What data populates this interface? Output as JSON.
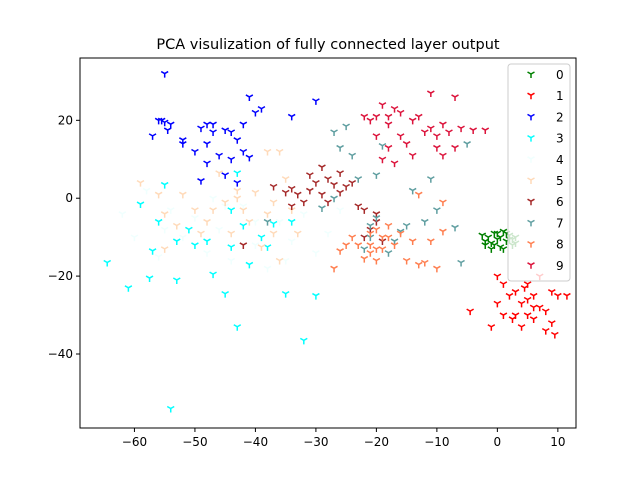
{
  "chart_data": {
    "type": "scatter",
    "title": "PCA visulization of fully connected layer output",
    "xlabel": "",
    "ylabel": "",
    "xlim": [
      -69,
      13
    ],
    "ylim": [
      -59,
      36
    ],
    "xticks": [
      -60,
      -50,
      -40,
      -30,
      -20,
      -10,
      0,
      10
    ],
    "yticks": [
      -40,
      -20,
      0,
      20
    ],
    "grid": false,
    "legend_position": "top-right",
    "marker": "tri_down",
    "series": [
      {
        "name": "0",
        "color": "#008000",
        "points": [
          [
            -2.5,
            -9.5
          ],
          [
            -2,
            -12
          ],
          [
            -1.5,
            -10
          ],
          [
            -1,
            -11.5
          ],
          [
            -0.5,
            -9
          ],
          [
            0,
            -10.5
          ],
          [
            0.5,
            -12.5
          ],
          [
            1,
            -8.5
          ],
          [
            1.5,
            -11
          ],
          [
            2,
            -9.5
          ],
          [
            2.5,
            -12
          ],
          [
            3,
            -10
          ],
          [
            -1,
            -13
          ],
          [
            0,
            -9
          ],
          [
            1,
            -13
          ],
          [
            2,
            -10.5
          ],
          [
            -2,
            -11
          ],
          [
            3,
            -11.5
          ],
          [
            0.5,
            -10
          ],
          [
            -0.5,
            -12
          ],
          [
            1.5,
            -9
          ],
          [
            2.5,
            -10.5
          ]
        ]
      },
      {
        "name": "1",
        "color": "#ff0000",
        "points": [
          [
            -4.5,
            -29
          ],
          [
            -1,
            -33
          ],
          [
            0,
            -20
          ],
          [
            0,
            -27
          ],
          [
            1,
            -22
          ],
          [
            1,
            -30
          ],
          [
            2,
            -25
          ],
          [
            3,
            -24
          ],
          [
            3,
            -30
          ],
          [
            4,
            -27
          ],
          [
            4,
            -33
          ],
          [
            5,
            -22
          ],
          [
            5,
            -26
          ],
          [
            5,
            -30
          ],
          [
            6,
            -25
          ],
          [
            6,
            -28
          ],
          [
            6,
            -31
          ],
          [
            7,
            -20
          ],
          [
            7,
            -28
          ],
          [
            8,
            -29
          ],
          [
            8,
            -34
          ],
          [
            9,
            -24
          ],
          [
            9,
            -32
          ],
          [
            9.5,
            -35
          ],
          [
            10,
            -25
          ],
          [
            11.5,
            -25
          ],
          [
            4.5,
            -23
          ],
          [
            2.5,
            -31
          ]
        ]
      },
      {
        "name": "2",
        "color": "#0000ff",
        "points": [
          [
            -55,
            32
          ],
          [
            -56,
            20
          ],
          [
            -55.5,
            20
          ],
          [
            -55,
            19.5
          ],
          [
            -54.5,
            17.5
          ],
          [
            -54,
            19
          ],
          [
            -57,
            16
          ],
          [
            -52,
            15
          ],
          [
            -52,
            14
          ],
          [
            -50,
            12
          ],
          [
            -49,
            18
          ],
          [
            -48,
            19
          ],
          [
            -47,
            17
          ],
          [
            -47,
            19
          ],
          [
            -48,
            14
          ],
          [
            -45,
            17.5
          ],
          [
            -44,
            17
          ],
          [
            -44,
            10
          ],
          [
            -42,
            12
          ],
          [
            -42,
            19
          ],
          [
            -41,
            26
          ],
          [
            -41,
            10.5
          ],
          [
            -40,
            22
          ],
          [
            -39,
            23
          ],
          [
            -34,
            21
          ],
          [
            -30,
            25
          ],
          [
            -48,
            9
          ],
          [
            -46,
            11
          ],
          [
            -45,
            6
          ],
          [
            -43,
            15
          ],
          [
            -49,
            4.5
          ],
          [
            -43,
            4
          ]
        ]
      },
      {
        "name": "3",
        "color": "#00ffff",
        "points": [
          [
            -64.5,
            -16.5
          ],
          [
            -61,
            -23
          ],
          [
            -59,
            -1.5
          ],
          [
            -57.5,
            -20.5
          ],
          [
            -57,
            -13.5
          ],
          [
            -56,
            -6
          ],
          [
            -55,
            3.5
          ],
          [
            -54,
            -54
          ],
          [
            -53,
            -11
          ],
          [
            -53,
            -21
          ],
          [
            -51,
            -8
          ],
          [
            -50,
            -12
          ],
          [
            -48,
            -11
          ],
          [
            -47,
            -19.5
          ],
          [
            -45,
            -24.5
          ],
          [
            -44,
            -3
          ],
          [
            -44,
            -12.5
          ],
          [
            -43,
            -33
          ],
          [
            -43,
            6.5
          ],
          [
            -42,
            -7
          ],
          [
            -41,
            -17
          ],
          [
            -39,
            -10
          ],
          [
            -38,
            -12.5
          ],
          [
            -37,
            -6.5
          ],
          [
            -35,
            -24.5
          ],
          [
            -34,
            -6
          ],
          [
            -32,
            -36.5
          ],
          [
            -30,
            -25
          ]
        ]
      },
      {
        "name": "4",
        "color": "#f0fffe",
        "points": [
          [
            -62,
            -4
          ],
          [
            -60,
            -10
          ],
          [
            -58,
            2
          ],
          [
            -56,
            -15
          ],
          [
            -54,
            -3
          ],
          [
            -52,
            -10
          ],
          [
            -50,
            -5
          ],
          [
            -48,
            -14
          ],
          [
            -46,
            -8
          ],
          [
            -44,
            -16
          ],
          [
            -42,
            -2
          ],
          [
            -40,
            -12
          ],
          [
            -38,
            -18
          ],
          [
            -36,
            -6
          ],
          [
            -34,
            -11
          ],
          [
            -32,
            -4
          ],
          [
            -30,
            -14
          ],
          [
            -28,
            -9
          ],
          [
            -26,
            -3
          ],
          [
            -45,
            -2
          ],
          [
            -55,
            -8
          ],
          [
            -40,
            -6
          ],
          [
            -35,
            -16
          ],
          [
            -47,
            0
          ]
        ]
      },
      {
        "name": "5",
        "color": "#ffdab9",
        "points": [
          [
            -59,
            4
          ],
          [
            -56,
            1
          ],
          [
            -55,
            -4
          ],
          [
            -55,
            -13
          ],
          [
            -53,
            -7
          ],
          [
            -52,
            1
          ],
          [
            -50,
            -3
          ],
          [
            -49,
            -9
          ],
          [
            -48,
            -6
          ],
          [
            -47,
            -3
          ],
          [
            -46,
            6.5
          ],
          [
            -45,
            -1
          ],
          [
            -44,
            -9
          ],
          [
            -43,
            0
          ],
          [
            -42,
            -3
          ],
          [
            -41,
            -6
          ],
          [
            -40,
            1.5
          ],
          [
            -39,
            -12.5
          ],
          [
            -38,
            -4
          ],
          [
            -37,
            -1
          ],
          [
            -37,
            -9
          ],
          [
            -36,
            -16
          ],
          [
            -35,
            5
          ],
          [
            -34,
            -3
          ],
          [
            -33,
            -9
          ],
          [
            -38,
            12
          ],
          [
            -36,
            12
          ],
          [
            -43,
            2
          ]
        ]
      },
      {
        "name": "6",
        "color": "#a52a2a",
        "points": [
          [
            -42,
            -12
          ],
          [
            -37,
            3
          ],
          [
            -35,
            1.5
          ],
          [
            -34,
            2.5
          ],
          [
            -33,
            1
          ],
          [
            -32,
            -1
          ],
          [
            -31,
            2
          ],
          [
            -31,
            6
          ],
          [
            -30,
            4
          ],
          [
            -29,
            1
          ],
          [
            -28,
            -1
          ],
          [
            -28,
            5
          ],
          [
            -27,
            3.5
          ],
          [
            -26,
            1.5
          ],
          [
            -25,
            3
          ],
          [
            -24,
            4
          ],
          [
            -23,
            -2
          ],
          [
            -22,
            -3
          ],
          [
            -22,
            -10
          ],
          [
            -21,
            -8
          ],
          [
            -20,
            -6
          ],
          [
            -20,
            -4
          ],
          [
            -19,
            -11
          ],
          [
            -34,
            -2
          ],
          [
            -29,
            8
          ],
          [
            -26,
            6.5
          ]
        ]
      },
      {
        "name": "7",
        "color": "#5f9ea0",
        "points": [
          [
            -38,
            -6
          ],
          [
            -29,
            -2.5
          ],
          [
            -27,
            17
          ],
          [
            -26,
            13
          ],
          [
            -25,
            18.5
          ],
          [
            -24,
            11
          ],
          [
            -23,
            5
          ],
          [
            -22,
            -13
          ],
          [
            -21,
            -7
          ],
          [
            -21,
            -10
          ],
          [
            -20,
            -5
          ],
          [
            -20,
            6
          ],
          [
            -19,
            13.5
          ],
          [
            -18,
            -14
          ],
          [
            -17,
            -11
          ],
          [
            -16,
            -8.5
          ],
          [
            -15,
            -7
          ],
          [
            -14,
            2
          ],
          [
            -12,
            -6
          ],
          [
            -11,
            5
          ],
          [
            -10,
            -3
          ],
          [
            -7,
            -7.5
          ],
          [
            -6,
            -16.5
          ],
          [
            -5,
            14
          ],
          [
            -27,
            0
          ]
        ]
      },
      {
        "name": "8",
        "color": "#ff7f50",
        "points": [
          [
            -27,
            -18
          ],
          [
            -26,
            -13.5
          ],
          [
            -25,
            -12
          ],
          [
            -24,
            -10
          ],
          [
            -23,
            -12
          ],
          [
            -22,
            -15.5
          ],
          [
            -21,
            -9
          ],
          [
            -21,
            -12
          ],
          [
            -20,
            -8
          ],
          [
            -20,
            -13
          ],
          [
            -19,
            -10
          ],
          [
            -19,
            -13
          ],
          [
            -18,
            -7
          ],
          [
            -18,
            -10
          ],
          [
            -17,
            -12
          ],
          [
            -16,
            -9
          ],
          [
            -15,
            -16
          ],
          [
            -14,
            -11
          ],
          [
            -13,
            1
          ],
          [
            -13,
            -17
          ],
          [
            -12,
            -16.5
          ],
          [
            -11,
            -11
          ],
          [
            -10,
            -18
          ],
          [
            -9,
            -8.5
          ],
          [
            -9,
            -1
          ],
          [
            -21,
            -14
          ],
          [
            -20,
            -16
          ]
        ]
      },
      {
        "name": "9",
        "color": "#dc143c",
        "points": [
          [
            -22,
            21
          ],
          [
            -21,
            20
          ],
          [
            -20,
            21
          ],
          [
            -19,
            24
          ],
          [
            -18,
            19
          ],
          [
            -18,
            21
          ],
          [
            -17,
            23
          ],
          [
            -17,
            9
          ],
          [
            -16,
            22
          ],
          [
            -16,
            16
          ],
          [
            -15,
            14
          ],
          [
            -14,
            20
          ],
          [
            -14,
            11
          ],
          [
            -13,
            21
          ],
          [
            -12,
            17
          ],
          [
            -11,
            27
          ],
          [
            -11,
            18
          ],
          [
            -10,
            16
          ],
          [
            -10,
            13
          ],
          [
            -9,
            19
          ],
          [
            -8,
            17
          ],
          [
            -7,
            26
          ],
          [
            -7,
            13
          ],
          [
            -6,
            18
          ],
          [
            -4,
            17.5
          ],
          [
            -2,
            17.5
          ],
          [
            -18,
            13
          ],
          [
            -20,
            16
          ],
          [
            -19,
            10
          ],
          [
            -9,
            11
          ]
        ]
      }
    ]
  }
}
